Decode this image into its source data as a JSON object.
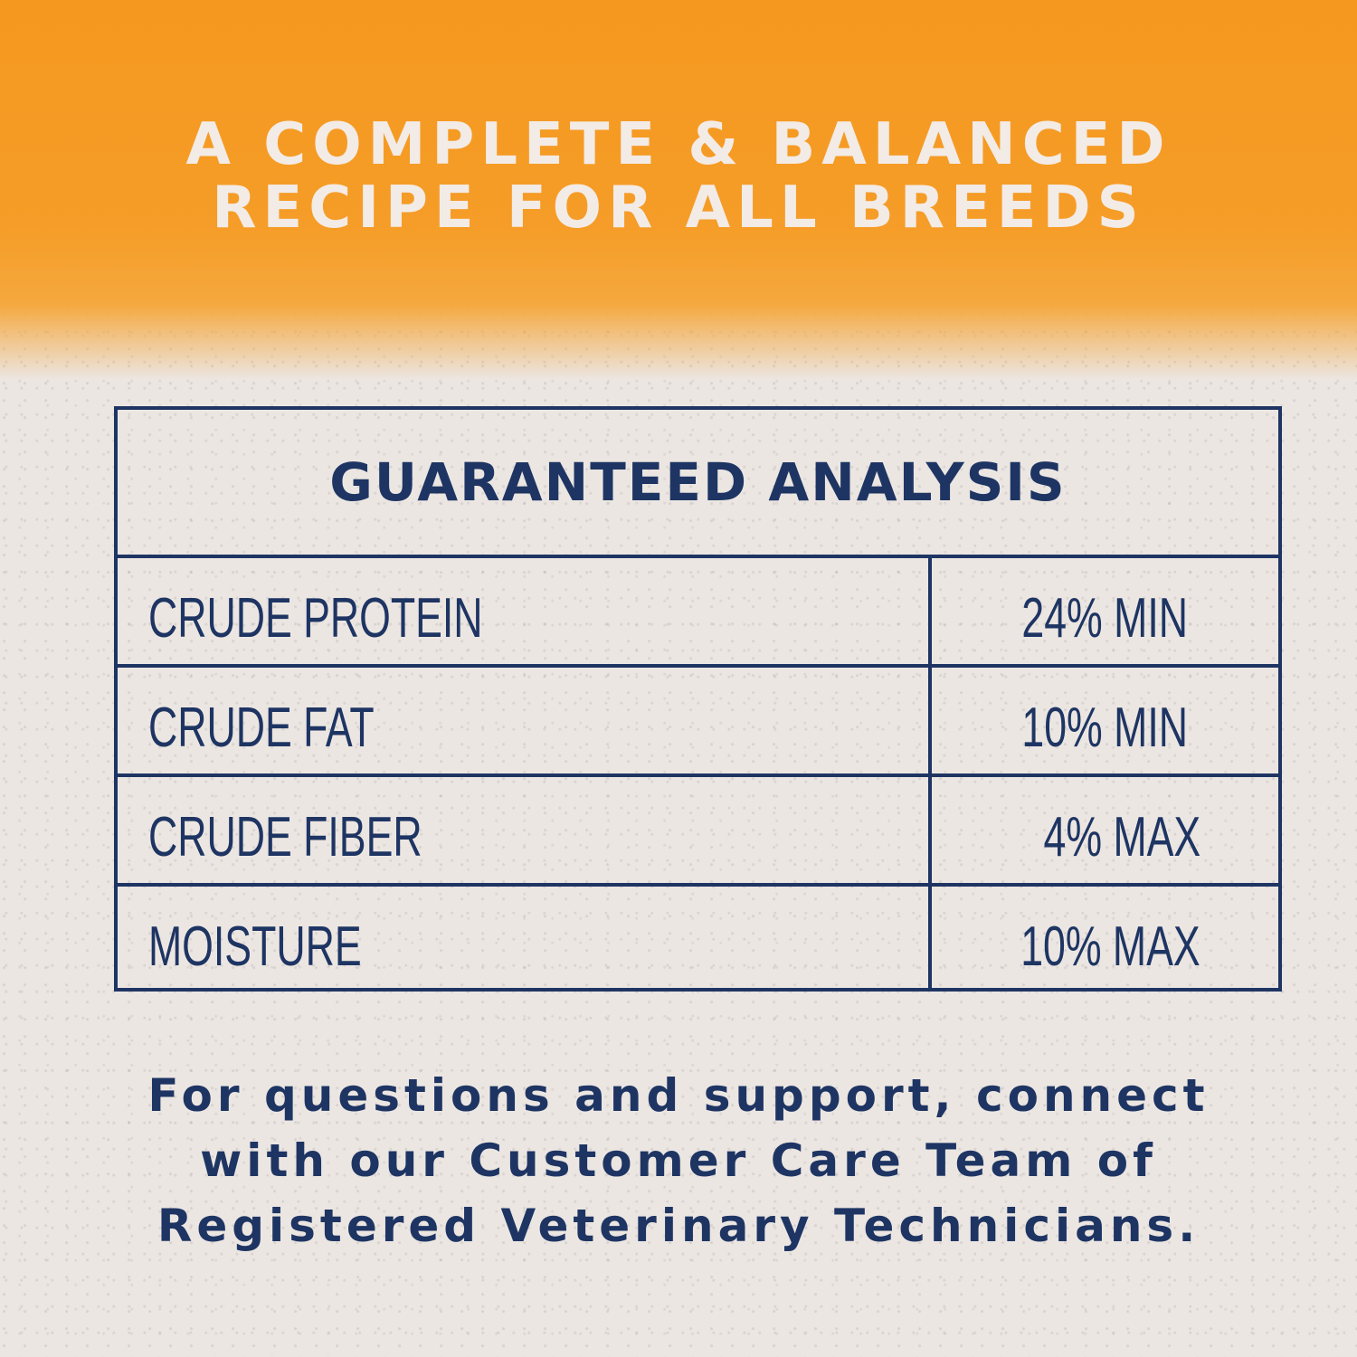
{
  "colors": {
    "banner": "#f5981f",
    "navy": "#1e3563",
    "background": "#ece6e2",
    "headline_text": "#f3ebe6"
  },
  "headline": {
    "line1": "A COMPLETE & BALANCED",
    "line2": "RECIPE FOR ALL BREEDS"
  },
  "table": {
    "title": "GUARANTEED ANALYSIS",
    "rows": [
      {
        "label": "CRUDE PROTEIN",
        "value": "24% MIN"
      },
      {
        "label": "CRUDE FAT",
        "value": "10% MIN"
      },
      {
        "label": "CRUDE FIBER",
        "value": "4% MAX"
      },
      {
        "label": "MOISTURE",
        "value": "10% MAX"
      }
    ]
  },
  "footer": {
    "line1": "For questions and support, connect",
    "line2": "with our Customer Care Team of",
    "line3": "Registered Veterinary Technicians."
  }
}
